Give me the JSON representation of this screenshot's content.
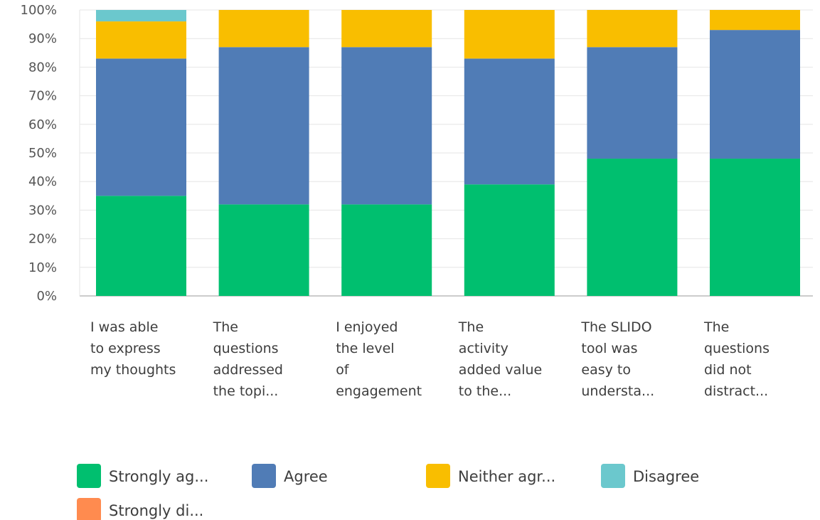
{
  "chart_data": {
    "type": "bar",
    "stacked": true,
    "categories": [
      [
        "I was able",
        "to express",
        "my thoughts"
      ],
      [
        "The",
        "questions",
        "addressed",
        "the topi..."
      ],
      [
        "I enjoyed",
        "the level",
        "of",
        "engagement"
      ],
      [
        "The",
        "activity",
        "added value",
        "to the..."
      ],
      [
        "The SLIDO",
        "tool was",
        "easy to",
        "understa..."
      ],
      [
        "The",
        "questions",
        "did not",
        "distract..."
      ]
    ],
    "series": [
      {
        "name": "Strongly ag...",
        "color": "#00bf6f",
        "values": [
          35,
          32,
          32,
          39,
          48,
          48
        ]
      },
      {
        "name": "Agree",
        "color": "#507cb6",
        "values": [
          48,
          55,
          55,
          44,
          39,
          45
        ]
      },
      {
        "name": "Neither agr...",
        "color": "#f9be00",
        "values": [
          13,
          13,
          13,
          17,
          13,
          7
        ]
      },
      {
        "name": "Disagree",
        "color": "#6bc8cd",
        "values": [
          4,
          0,
          0,
          0,
          0,
          0
        ]
      },
      {
        "name": "Strongly di...",
        "color": "#ff8b4f",
        "values": [
          0,
          0,
          0,
          0,
          0,
          0
        ]
      }
    ],
    "y_ticks": [
      "0%",
      "10%",
      "20%",
      "30%",
      "40%",
      "50%",
      "60%",
      "70%",
      "80%",
      "90%",
      "100%"
    ],
    "ylim": [
      0,
      100
    ],
    "grid": true,
    "legend": "bottom"
  }
}
